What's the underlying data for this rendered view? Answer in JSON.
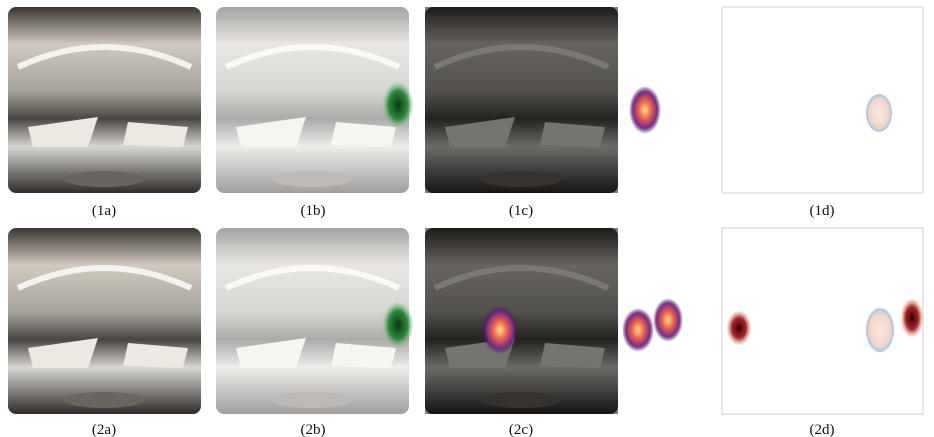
{
  "figure": {
    "captions": [
      "(1a)",
      "(1b)",
      "(1c)",
      "(1d)",
      "(2a)",
      "(2b)",
      "(2c)",
      "(2d)"
    ]
  }
}
